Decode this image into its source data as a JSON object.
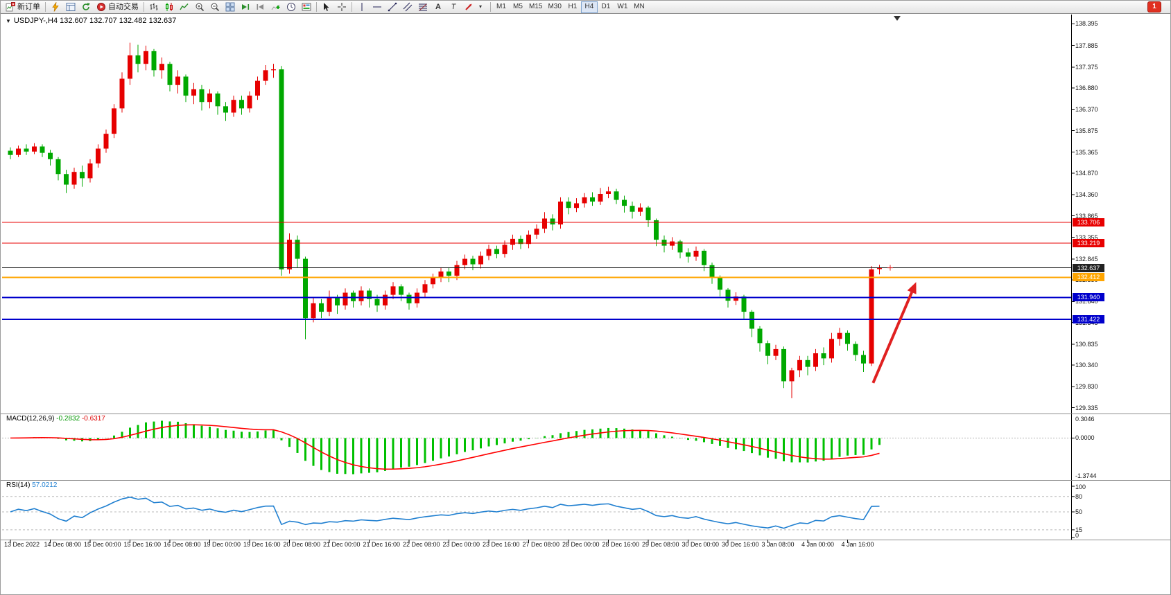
{
  "toolbar": {
    "new_order_label": "新订单",
    "auto_trading_label": "自动交易",
    "timeframes": [
      "M1",
      "M5",
      "M15",
      "M30",
      "H1",
      "H4",
      "D1",
      "W1",
      "MN"
    ],
    "active_timeframe": "H4",
    "notification_count": "1",
    "text_tool_label": "A",
    "label_tool_label": "T"
  },
  "chart": {
    "title": "USDJPY-,H4 132.607 132.707 132.482 132.637"
  },
  "chart_data": {
    "type": "candlestick",
    "symbol": "USDJPY-",
    "timeframe": "H4",
    "ohlc": {
      "open": "132.607",
      "high": "132.707",
      "low": "132.482",
      "close": "132.637"
    },
    "colors": {
      "bull": "#e60000",
      "bear": "#00a800"
    },
    "price_axis_ticks": [
      "138.395",
      "137.885",
      "137.375",
      "136.880",
      "136.370",
      "135.875",
      "135.365",
      "134.870",
      "134.360",
      "133.865",
      "133.355",
      "132.845",
      "132.350",
      "131.840",
      "131.345",
      "130.835",
      "130.340",
      "129.830",
      "129.335"
    ],
    "label_every_n_bars": 5,
    "time_labels": [
      "13 Dec 2022",
      "14 Dec 08:00",
      "15 Dec 00:00",
      "15 Dec 16:00",
      "16 Dec 08:00",
      "19 Dec 00:00",
      "19 Dec 16:00",
      "20 Dec 08:00",
      "21 Dec 00:00",
      "21 Dec 16:00",
      "22 Dec 08:00",
      "23 Dec 00:00",
      "23 Dec 16:00",
      "27 Dec 08:00",
      "28 Dec 00:00",
      "28 Dec 16:00",
      "29 Dec 08:00",
      "30 Dec 00:00",
      "30 Dec 16:00",
      "3 Jan 08:00",
      "4 Jan 00:00",
      "4 Jan 16:00"
    ],
    "hlines": [
      {
        "price": 133.706,
        "label": "133.706",
        "color": "#e80000",
        "width": 1
      },
      {
        "price": 133.219,
        "label": "133.219",
        "color": "#e80000",
        "width": 1
      },
      {
        "price": 132.637,
        "label": "132.637",
        "color": "#222222",
        "width": 1
      },
      {
        "price": 132.412,
        "label": "132.412",
        "color": "#ffa500",
        "width": 2
      },
      {
        "price": 131.94,
        "label": "131.940",
        "color": "#0000cc",
        "width": 2
      },
      {
        "price": 131.422,
        "label": "131.422",
        "color": "#0000cc",
        "width": 2
      }
    ],
    "arrow_annotation": {
      "from_bar": 108.2,
      "from_price": 129.92,
      "to_bar": 113.6,
      "to_price": 132.3,
      "color": "#e02020"
    },
    "candles": [
      [
        135.4,
        135.48,
        135.2,
        135.3
      ],
      [
        135.3,
        135.52,
        135.25,
        135.45
      ],
      [
        135.45,
        135.55,
        135.3,
        135.38
      ],
      [
        135.38,
        135.58,
        135.32,
        135.5
      ],
      [
        135.5,
        135.55,
        135.25,
        135.35
      ],
      [
        135.35,
        135.42,
        135.05,
        135.2
      ],
      [
        135.2,
        135.25,
        134.7,
        134.85
      ],
      [
        134.85,
        134.95,
        134.4,
        134.6
      ],
      [
        134.6,
        135.0,
        134.5,
        134.9
      ],
      [
        134.9,
        135.05,
        134.55,
        134.75
      ],
      [
        134.75,
        135.2,
        134.65,
        135.1
      ],
      [
        135.1,
        135.55,
        135.0,
        135.45
      ],
      [
        135.45,
        135.9,
        135.35,
        135.8
      ],
      [
        135.8,
        136.5,
        135.7,
        136.4
      ],
      [
        136.4,
        137.25,
        136.3,
        137.1
      ],
      [
        137.1,
        137.95,
        136.95,
        137.65
      ],
      [
        137.65,
        137.9,
        137.25,
        137.45
      ],
      [
        137.45,
        137.88,
        137.3,
        137.75
      ],
      [
        137.75,
        137.8,
        137.15,
        137.3
      ],
      [
        137.3,
        137.6,
        137.1,
        137.45
      ],
      [
        137.45,
        137.5,
        136.8,
        136.95
      ],
      [
        136.95,
        137.3,
        136.75,
        137.15
      ],
      [
        137.15,
        137.2,
        136.55,
        136.7
      ],
      [
        136.7,
        137.0,
        136.5,
        136.85
      ],
      [
        136.85,
        136.95,
        136.35,
        136.55
      ],
      [
        136.55,
        136.85,
        136.4,
        136.75
      ],
      [
        136.75,
        136.8,
        136.25,
        136.45
      ],
      [
        136.45,
        136.55,
        136.1,
        136.3
      ],
      [
        136.3,
        136.7,
        136.2,
        136.6
      ],
      [
        136.6,
        136.7,
        136.25,
        136.4
      ],
      [
        136.4,
        136.8,
        136.3,
        136.7
      ],
      [
        136.7,
        137.15,
        136.6,
        137.05
      ],
      [
        137.05,
        137.42,
        136.95,
        137.3
      ],
      [
        137.3,
        137.45,
        137.12,
        137.32
      ],
      [
        137.32,
        137.4,
        132.45,
        132.6
      ],
      [
        132.6,
        133.45,
        132.5,
        133.3
      ],
      [
        133.3,
        133.4,
        132.65,
        132.85
      ],
      [
        132.85,
        132.9,
        130.95,
        131.45
      ],
      [
        131.45,
        131.95,
        131.35,
        131.8
      ],
      [
        131.8,
        131.9,
        131.45,
        131.6
      ],
      [
        131.6,
        132.1,
        131.5,
        131.95
      ],
      [
        131.95,
        132.0,
        131.55,
        131.75
      ],
      [
        131.75,
        132.15,
        131.65,
        132.05
      ],
      [
        132.05,
        132.1,
        131.7,
        131.85
      ],
      [
        131.85,
        132.2,
        131.75,
        132.1
      ],
      [
        132.1,
        132.15,
        131.7,
        131.9
      ],
      [
        131.9,
        132.0,
        131.6,
        131.75
      ],
      [
        131.75,
        132.1,
        131.65,
        132.0
      ],
      [
        132.0,
        132.3,
        131.9,
        132.2
      ],
      [
        132.2,
        132.25,
        131.85,
        132.0
      ],
      [
        132.0,
        132.05,
        131.65,
        131.8
      ],
      [
        131.8,
        132.15,
        131.7,
        132.05
      ],
      [
        132.05,
        132.35,
        131.95,
        132.25
      ],
      [
        132.25,
        132.5,
        132.15,
        132.4
      ],
      [
        132.4,
        132.65,
        132.3,
        132.55
      ],
      [
        132.55,
        132.65,
        132.3,
        132.45
      ],
      [
        132.45,
        132.8,
        132.35,
        132.7
      ],
      [
        132.7,
        132.95,
        132.6,
        132.85
      ],
      [
        132.85,
        132.92,
        132.58,
        132.72
      ],
      [
        132.72,
        133.02,
        132.62,
        132.92
      ],
      [
        132.92,
        133.18,
        132.82,
        133.08
      ],
      [
        133.08,
        133.16,
        132.86,
        132.96
      ],
      [
        132.96,
        133.28,
        132.88,
        133.18
      ],
      [
        133.18,
        133.42,
        133.06,
        133.32
      ],
      [
        133.32,
        133.4,
        133.08,
        133.2
      ],
      [
        133.2,
        133.52,
        133.1,
        133.42
      ],
      [
        133.42,
        133.66,
        133.32,
        133.56
      ],
      [
        133.56,
        133.95,
        133.46,
        133.8
      ],
      [
        133.8,
        133.9,
        133.52,
        133.66
      ],
      [
        133.66,
        134.3,
        133.56,
        134.2
      ],
      [
        134.2,
        134.3,
        133.9,
        134.05
      ],
      [
        134.05,
        134.28,
        133.95,
        134.16
      ],
      [
        134.16,
        134.4,
        134.06,
        134.3
      ],
      [
        134.3,
        134.42,
        134.1,
        134.2
      ],
      [
        134.2,
        134.52,
        134.12,
        134.38
      ],
      [
        134.38,
        134.55,
        134.28,
        134.44
      ],
      [
        134.44,
        134.5,
        134.14,
        134.24
      ],
      [
        134.24,
        134.34,
        133.94,
        134.1
      ],
      [
        134.1,
        134.2,
        133.8,
        133.96
      ],
      [
        133.96,
        134.16,
        133.86,
        134.06
      ],
      [
        134.06,
        134.1,
        133.6,
        133.76
      ],
      [
        133.76,
        133.8,
        133.15,
        133.3
      ],
      [
        133.3,
        133.4,
        133.0,
        133.16
      ],
      [
        133.16,
        133.36,
        133.06,
        133.26
      ],
      [
        133.26,
        133.3,
        132.86,
        133.0
      ],
      [
        133.0,
        133.1,
        132.76,
        132.9
      ],
      [
        132.9,
        133.14,
        132.8,
        133.04
      ],
      [
        133.04,
        133.08,
        132.56,
        132.7
      ],
      [
        132.7,
        132.76,
        132.26,
        132.42
      ],
      [
        132.42,
        132.46,
        131.96,
        132.12
      ],
      [
        132.12,
        132.16,
        131.7,
        131.86
      ],
      [
        131.86,
        132.06,
        131.76,
        131.96
      ],
      [
        131.96,
        132.0,
        131.44,
        131.6
      ],
      [
        131.6,
        131.64,
        131.0,
        131.2
      ],
      [
        131.2,
        131.26,
        130.66,
        130.86
      ],
      [
        130.86,
        130.92,
        130.36,
        130.56
      ],
      [
        130.56,
        130.82,
        130.46,
        130.72
      ],
      [
        130.72,
        130.78,
        129.8,
        129.96
      ],
      [
        129.96,
        130.28,
        129.56,
        130.22
      ],
      [
        130.22,
        130.56,
        130.06,
        130.46
      ],
      [
        130.46,
        130.56,
        130.1,
        130.3
      ],
      [
        130.3,
        130.72,
        130.2,
        130.62
      ],
      [
        130.62,
        130.76,
        130.34,
        130.5
      ],
      [
        130.5,
        131.1,
        130.4,
        130.96
      ],
      [
        130.96,
        131.22,
        130.8,
        131.1
      ],
      [
        131.1,
        131.16,
        130.68,
        130.84
      ],
      [
        130.84,
        130.9,
        130.44,
        130.58
      ],
      [
        130.58,
        130.68,
        130.18,
        130.38
      ],
      [
        130.38,
        132.68,
        130.32,
        132.6
      ],
      [
        132.607,
        132.707,
        132.482,
        132.637
      ]
    ],
    "macd": {
      "name": "MACD(12,26,9)",
      "params": [
        12,
        26,
        9
      ],
      "main_value": "-0.2832",
      "signal_value": "-0.6317",
      "hist_color": "#00c000",
      "signal_color": "#ff0000",
      "scale_labels": {
        "top": "0.3046",
        "zero": "0.0000",
        "bottom": "-1.3744"
      }
    },
    "rsi": {
      "name": "RSI(14)",
      "period": 14,
      "value": "57.0212",
      "line_color": "#1f7fd0",
      "levels": [
        80,
        50,
        15
      ],
      "scale_labels": [
        "100",
        "80",
        "50",
        "15",
        "0"
      ]
    }
  }
}
